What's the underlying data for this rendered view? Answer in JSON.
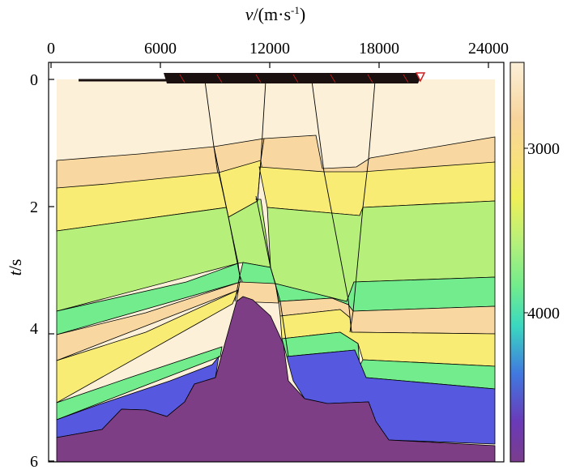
{
  "figure": {
    "top_axis_title": {
      "italic": "v",
      "rest": "/(m·s",
      "sup": "-1",
      "close": ")"
    },
    "left_axis_title": {
      "italic": "t",
      "rest": "/s"
    },
    "top_ticks": [
      "0",
      "6000",
      "12000",
      "18000",
      "24000"
    ],
    "left_ticks": [
      "0",
      "2",
      "4",
      "6"
    ],
    "colorbar_ticks": [
      "3000",
      "4000"
    ]
  },
  "colors": {
    "cream": "#fcf0d8",
    "peach": "#f8d8a0",
    "yellow": "#f9ec74",
    "green": "#b6f07a",
    "bright_green": "#72ec8c",
    "blue": "#5658e0",
    "basement": "#7d3e86",
    "survey_line": "#1a1010"
  }
}
